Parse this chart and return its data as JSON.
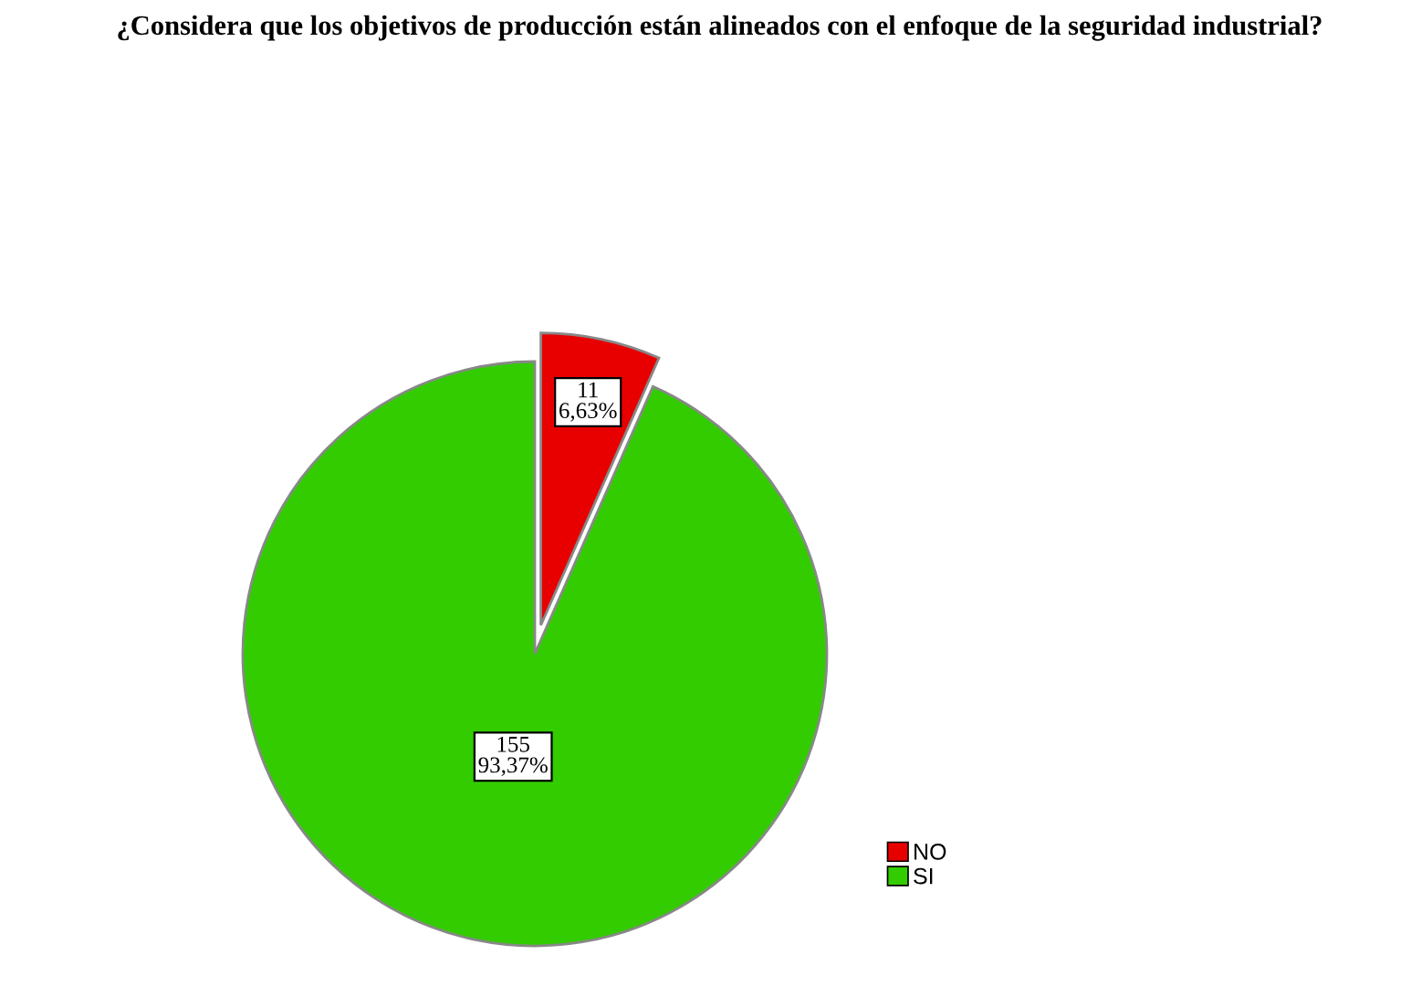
{
  "chart_data": {
    "type": "pie",
    "title": "¿Considera que los objetivos de producción están alineados con el enfoque de la seguridad industrial?",
    "categories": [
      "NO",
      "SI"
    ],
    "values": [
      11,
      155
    ],
    "colors": [
      "#e80000",
      "#33cc00"
    ],
    "value_labels": [
      "11\n6,63%",
      "155\n93,37%"
    ],
    "legend": "bottom right"
  }
}
